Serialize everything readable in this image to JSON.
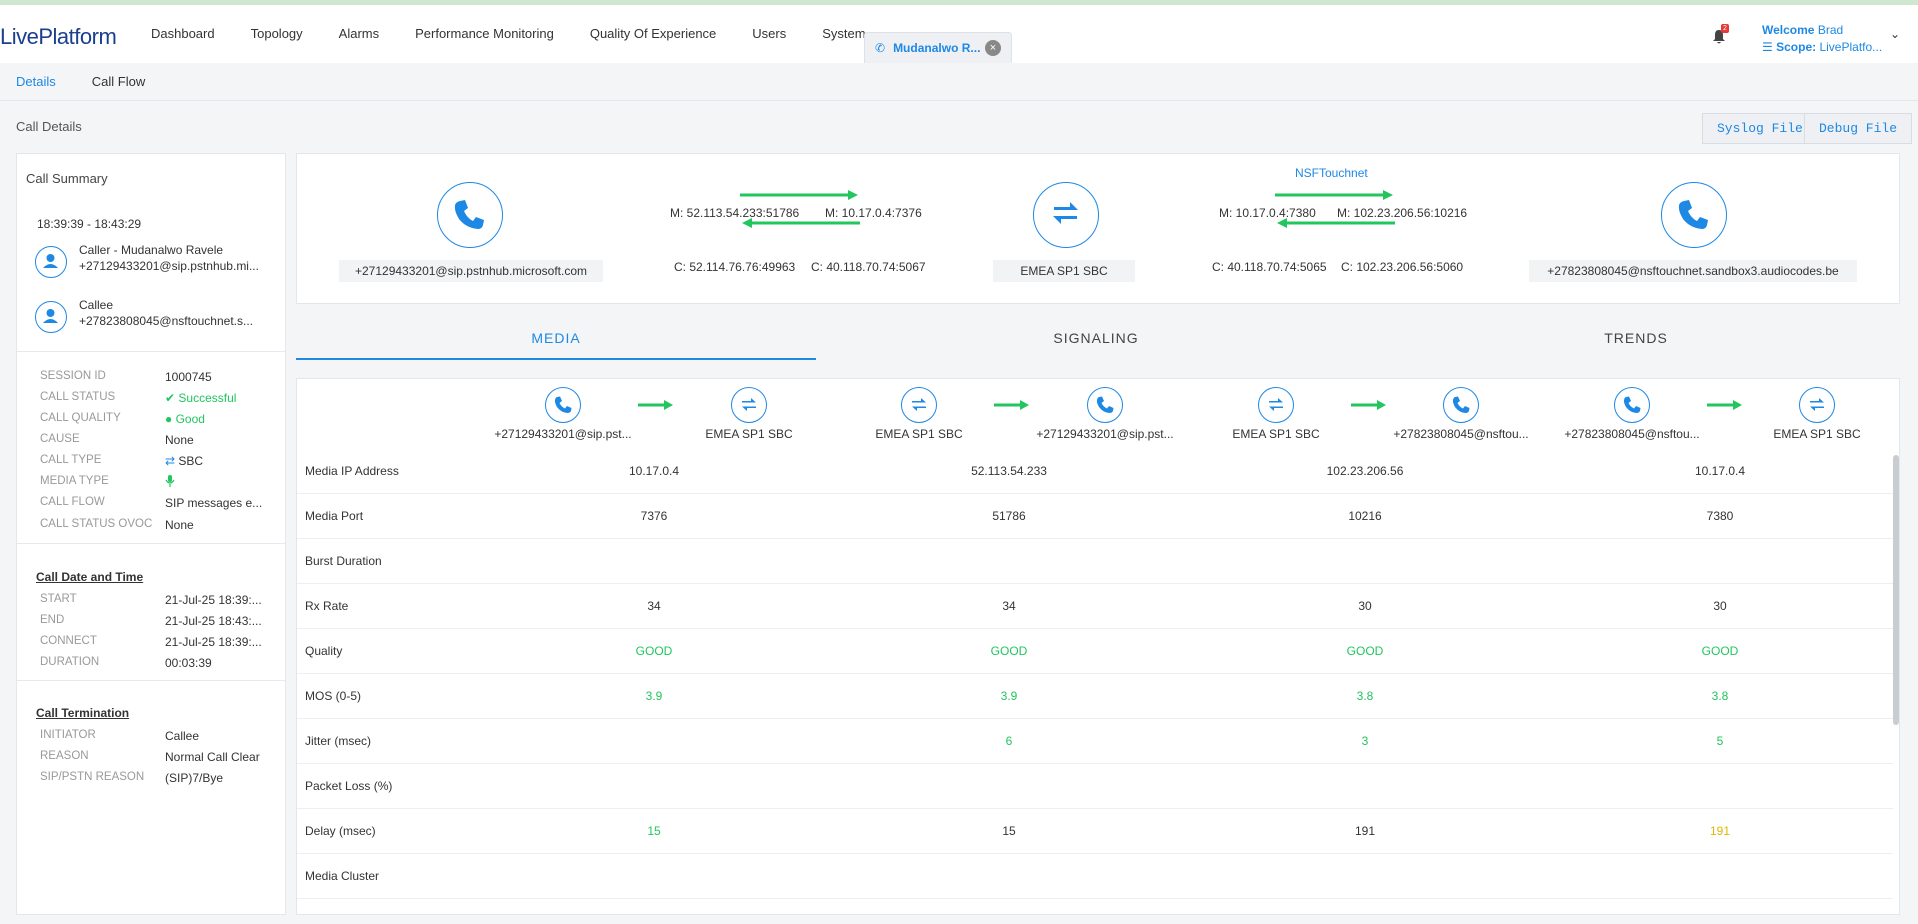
{
  "app": {
    "logo_a": "Live",
    "logo_b": "Platform"
  },
  "nav": [
    "Dashboard",
    "Topology",
    "Alarms",
    "Performance Monitoring",
    "Quality Of Experience",
    "Users",
    "System"
  ],
  "open_tab": {
    "label": "Mudanalwo R...",
    "close": "×"
  },
  "notifications": {
    "count": "2"
  },
  "user": {
    "welcome": "Welcome",
    "name": "Brad",
    "scope_label": "Scope:",
    "scope": "LivePlatfo..."
  },
  "subtabs": [
    "Details",
    "Call Flow"
  ],
  "page_title": "Call Details",
  "buttons": {
    "syslog": "Syslog File",
    "debug": "Debug File"
  },
  "summary": {
    "title": "Call Summary",
    "time": "18:39:39 - 18:43:29",
    "caller": {
      "line1": "Caller - Mudanalwo Ravele",
      "line2": "+27129433201@sip.pstnhub.mi..."
    },
    "callee": {
      "line1": "Callee",
      "line2": "+27823808045@nsftouchnet.s..."
    },
    "fields": [
      {
        "k": "SESSION ID",
        "v": "1000745"
      },
      {
        "k": "CALL STATUS",
        "v": "Successful"
      },
      {
        "k": "CALL QUALITY",
        "v": "Good"
      },
      {
        "k": "CAUSE",
        "v": "None"
      },
      {
        "k": "CALL TYPE",
        "v": "SBC"
      },
      {
        "k": "MEDIA TYPE",
        "v": ""
      },
      {
        "k": "CALL FLOW",
        "v": "SIP messages e..."
      },
      {
        "k": "CALL STATUS OVOC",
        "v": "None"
      }
    ],
    "date_title": "Call Date and Time",
    "date_fields": [
      {
        "k": "START",
        "v": "21-Jul-25 18:39:..."
      },
      {
        "k": "END",
        "v": "21-Jul-25 18:43:..."
      },
      {
        "k": "CONNECT",
        "v": "21-Jul-25 18:39:..."
      },
      {
        "k": "DURATION",
        "v": "00:03:39"
      }
    ],
    "term_title": "Call Termination",
    "term_fields": [
      {
        "k": "INITIATOR",
        "v": "Callee"
      },
      {
        "k": "REASON",
        "v": "Normal Call Clear"
      },
      {
        "k": "SIP/PSTN REASON",
        "v": "(SIP)7/Bye"
      }
    ]
  },
  "flow": {
    "left_node": "+27129433201@sip.pstnhub.microsoft.com",
    "mid_node": "EMEA SP1 SBC",
    "right_node": "+27823808045@nsftouchnet.sandbox3.audiocodes.be",
    "nsf": "NSFTouchnet",
    "l_m_left": "M: 52.113.54.233:51786",
    "l_m_right": "M: 10.17.0.4:7376",
    "l_c_left": "C: 52.114.76.76:49963",
    "l_c_right": "C: 40.118.70.74:5067",
    "r_m_left": "M: 10.17.0.4:7380",
    "r_m_right": "M: 102.23.206.56:10216",
    "r_c_left": "C: 40.118.70.74:5065",
    "r_c_right": "C: 102.23.206.56:5060"
  },
  "tabs": [
    "MEDIA",
    "SIGNALING",
    "TRENDS"
  ],
  "legs": [
    {
      "from": "+27129433201@sip.pst...",
      "to": "EMEA SP1 SBC"
    },
    {
      "from": "EMEA SP1 SBC",
      "to": "+27129433201@sip.pst..."
    },
    {
      "from": "EMEA SP1 SBC",
      "to": "+27823808045@nsftou..."
    },
    {
      "from": "+27823808045@nsftou...",
      "to": "EMEA SP1 SBC"
    }
  ],
  "rows": [
    {
      "label": "Media IP Address",
      "values": [
        "10.17.0.4",
        "52.113.54.233",
        "102.23.206.56",
        "10.17.0.4"
      ]
    },
    {
      "label": "Media Port",
      "values": [
        "7376",
        "51786",
        "10216",
        "7380"
      ]
    },
    {
      "label": "Burst Duration",
      "values": [
        "",
        "",
        "",
        ""
      ]
    },
    {
      "label": "Rx Rate",
      "values": [
        "34",
        "34",
        "30",
        "30"
      ]
    },
    {
      "label": "Quality",
      "values": [
        "GOOD",
        "GOOD",
        "GOOD",
        "GOOD"
      ]
    },
    {
      "label": "MOS (0-5)",
      "values": [
        "3.9",
        "3.9",
        "3.8",
        "3.8"
      ]
    },
    {
      "label": "Jitter (msec)",
      "values": [
        "",
        "6",
        "3",
        "5"
      ]
    },
    {
      "label": "Packet Loss (%)",
      "values": [
        "",
        "",
        "",
        ""
      ]
    },
    {
      "label": "Delay (msec)",
      "values": [
        "15",
        "15",
        "191",
        "191"
      ]
    },
    {
      "label": "Media Cluster",
      "values": [
        "",
        "",
        "",
        ""
      ]
    }
  ],
  "colors": {
    "accent": "#1e88e5",
    "good": "#22c55e",
    "warn": "#e0b800"
  }
}
